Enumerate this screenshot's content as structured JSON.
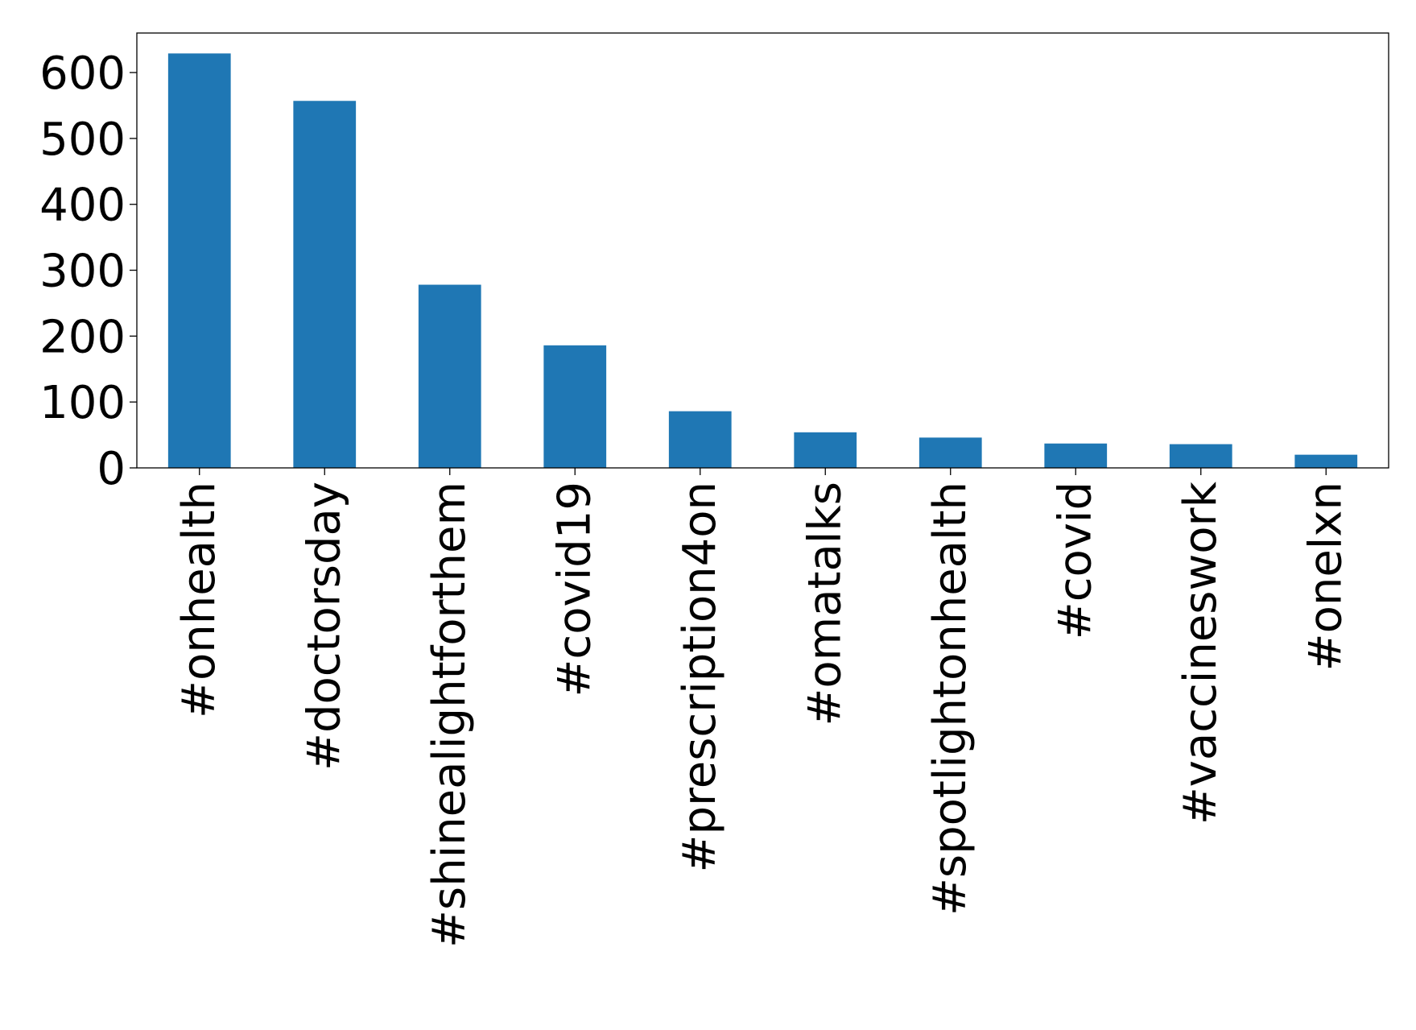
{
  "chart_data": {
    "type": "bar",
    "title": "",
    "xlabel": "",
    "ylabel": "",
    "categories": [
      "#onhealth",
      "#doctorsday",
      "#shinealightforthem",
      "#covid19",
      "#prescription4on",
      "#omatalks",
      "#spotlightonhealth",
      "#covid",
      "#vaccineswork",
      "#onelxn"
    ],
    "values": [
      629,
      557,
      278,
      186,
      86,
      54,
      46,
      37,
      36,
      20
    ],
    "ylim": [
      0,
      660
    ],
    "yticks": [
      0,
      100,
      200,
      300,
      400,
      500,
      600
    ],
    "ytick_labels": [
      "0",
      "100",
      "200",
      "300",
      "400",
      "500",
      "600"
    ],
    "grid": false,
    "legend": "none",
    "bar_color": "#1f77b4"
  }
}
